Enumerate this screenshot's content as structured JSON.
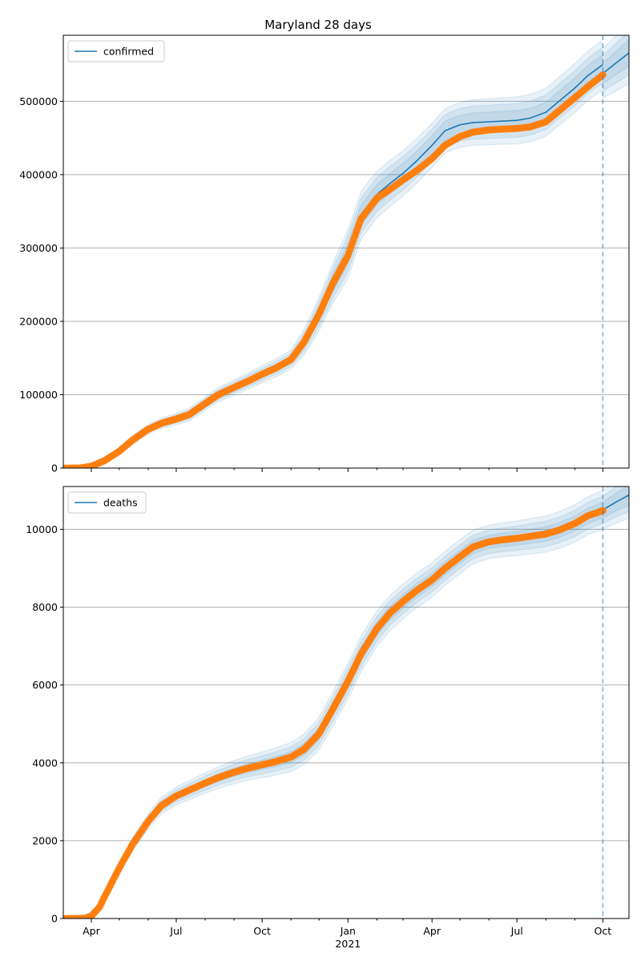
{
  "title": "Maryland 28 days",
  "colors": {
    "model_line": "#1f77b4",
    "observed_points": "#ff7f0e",
    "band": "#1f77b4",
    "grid": "#b0b0b0",
    "cutoff_line": "#1f77b4"
  },
  "x_axis": {
    "ticks": [
      {
        "date": "2020-04-01",
        "label": "Apr",
        "sub": ""
      },
      {
        "date": "2020-07-01",
        "label": "Jul",
        "sub": ""
      },
      {
        "date": "2020-10-01",
        "label": "Oct",
        "sub": ""
      },
      {
        "date": "2021-01-01",
        "label": "Jan",
        "sub": "2021"
      },
      {
        "date": "2021-04-01",
        "label": "Apr",
        "sub": ""
      },
      {
        "date": "2021-07-01",
        "label": "Jul",
        "sub": ""
      },
      {
        "date": "2021-10-01",
        "label": "Oct",
        "sub": ""
      }
    ]
  },
  "chart_data": [
    {
      "type": "line",
      "legend": "confirmed",
      "legend_position": "upper-left",
      "grid": "y",
      "xlim": [
        "2020-03-02",
        "2021-10-29"
      ],
      "ylim": [
        0,
        590000
      ],
      "yticks": [
        0,
        100000,
        200000,
        300000,
        400000,
        500000
      ],
      "cutoff_date": "2021-10-01",
      "observed": {
        "name": "observed",
        "points": [
          [
            "2020-03-02",
            0
          ],
          [
            "2020-03-20",
            150
          ],
          [
            "2020-04-01",
            2500
          ],
          [
            "2020-04-15",
            10000
          ],
          [
            "2020-05-01",
            23000
          ],
          [
            "2020-05-15",
            38000
          ],
          [
            "2020-06-01",
            53000
          ],
          [
            "2020-06-15",
            61000
          ],
          [
            "2020-07-01",
            67000
          ],
          [
            "2020-07-15",
            73000
          ],
          [
            "2020-08-01",
            88000
          ],
          [
            "2020-08-15",
            100000
          ],
          [
            "2020-09-01",
            110000
          ],
          [
            "2020-09-15",
            118000
          ],
          [
            "2020-10-01",
            128000
          ],
          [
            "2020-10-15",
            136000
          ],
          [
            "2020-11-01",
            148000
          ],
          [
            "2020-11-15",
            172000
          ],
          [
            "2020-12-01",
            210000
          ],
          [
            "2020-12-15",
            250000
          ],
          [
            "2021-01-01",
            290000
          ],
          [
            "2021-01-15",
            340000
          ],
          [
            "2021-02-01",
            368000
          ],
          [
            "2021-02-15",
            380000
          ],
          [
            "2021-03-01",
            393000
          ],
          [
            "2021-03-15",
            405000
          ],
          [
            "2021-04-01",
            422000
          ],
          [
            "2021-04-15",
            440000
          ],
          [
            "2021-05-01",
            452000
          ],
          [
            "2021-05-15",
            458000
          ],
          [
            "2021-06-01",
            461000
          ],
          [
            "2021-06-15",
            462000
          ],
          [
            "2021-07-01",
            463000
          ],
          [
            "2021-07-15",
            465000
          ],
          [
            "2021-08-01",
            472000
          ],
          [
            "2021-08-15",
            487000
          ],
          [
            "2021-09-01",
            505000
          ],
          [
            "2021-09-15",
            520000
          ],
          [
            "2021-10-01",
            536000
          ]
        ]
      },
      "model": {
        "name": "confirmed",
        "points": [
          [
            "2020-03-02",
            0
          ],
          [
            "2020-03-20",
            150
          ],
          [
            "2020-04-01",
            2500
          ],
          [
            "2020-04-15",
            10000
          ],
          [
            "2020-05-01",
            23000
          ],
          [
            "2020-05-15",
            38000
          ],
          [
            "2020-06-01",
            53000
          ],
          [
            "2020-06-15",
            61000
          ],
          [
            "2020-07-01",
            67000
          ],
          [
            "2020-07-15",
            73000
          ],
          [
            "2020-08-01",
            88000
          ],
          [
            "2020-08-15",
            100000
          ],
          [
            "2020-09-01",
            110000
          ],
          [
            "2020-09-15",
            118000
          ],
          [
            "2020-10-01",
            128000
          ],
          [
            "2020-10-15",
            136000
          ],
          [
            "2020-11-01",
            148000
          ],
          [
            "2020-11-15",
            172000
          ],
          [
            "2020-12-01",
            210000
          ],
          [
            "2020-12-15",
            250000
          ],
          [
            "2021-01-01",
            292000
          ],
          [
            "2021-01-15",
            345000
          ],
          [
            "2021-02-01",
            373000
          ],
          [
            "2021-02-15",
            388000
          ],
          [
            "2021-03-01",
            402000
          ],
          [
            "2021-03-15",
            418000
          ],
          [
            "2021-04-01",
            440000
          ],
          [
            "2021-04-15",
            460000
          ],
          [
            "2021-05-01",
            468000
          ],
          [
            "2021-05-15",
            471000
          ],
          [
            "2021-06-01",
            472000
          ],
          [
            "2021-06-15",
            473000
          ],
          [
            "2021-07-01",
            474000
          ],
          [
            "2021-07-15",
            477000
          ],
          [
            "2021-08-01",
            485000
          ],
          [
            "2021-08-15",
            500000
          ],
          [
            "2021-09-01",
            518000
          ],
          [
            "2021-09-15",
            535000
          ],
          [
            "2021-10-01",
            550000
          ]
        ]
      },
      "forecast": {
        "points": [
          [
            "2021-10-01",
            538000
          ],
          [
            "2021-10-15",
            552000
          ],
          [
            "2021-10-29",
            566000
          ]
        ]
      },
      "band_widths": [
        [
          [
            "2020-03-02",
            1000
          ],
          [
            "2020-11-01",
            5000
          ],
          [
            "2021-01-01",
            14000
          ],
          [
            "2021-04-01",
            13000
          ],
          [
            "2021-10-01",
            14000
          ],
          [
            "2021-10-29",
            18000
          ]
        ],
        [
          [
            "2020-03-02",
            2000
          ],
          [
            "2020-11-01",
            9000
          ],
          [
            "2021-01-01",
            24000
          ],
          [
            "2021-04-01",
            22000
          ],
          [
            "2021-10-01",
            24000
          ],
          [
            "2021-10-29",
            30000
          ]
        ],
        [
          [
            "2020-03-02",
            3000
          ],
          [
            "2020-11-01",
            13000
          ],
          [
            "2021-01-01",
            33000
          ],
          [
            "2021-04-01",
            30000
          ],
          [
            "2021-10-01",
            34000
          ],
          [
            "2021-10-29",
            42000
          ]
        ]
      ]
    },
    {
      "type": "line",
      "legend": "deaths",
      "legend_position": "upper-left",
      "grid": "y",
      "xlim": [
        "2020-03-02",
        "2021-10-29"
      ],
      "ylim": [
        0,
        11100
      ],
      "yticks": [
        0,
        2000,
        4000,
        6000,
        8000,
        10000
      ],
      "cutoff_date": "2021-10-01",
      "observed": {
        "name": "observed",
        "points": [
          [
            "2020-03-02",
            0
          ],
          [
            "2020-03-25",
            5
          ],
          [
            "2020-04-01",
            60
          ],
          [
            "2020-04-10",
            300
          ],
          [
            "2020-04-15",
            550
          ],
          [
            "2020-05-01",
            1300
          ],
          [
            "2020-05-15",
            1900
          ],
          [
            "2020-06-01",
            2500
          ],
          [
            "2020-06-15",
            2900
          ],
          [
            "2020-07-01",
            3150
          ],
          [
            "2020-07-15",
            3300
          ],
          [
            "2020-08-01",
            3480
          ],
          [
            "2020-08-15",
            3620
          ],
          [
            "2020-09-01",
            3760
          ],
          [
            "2020-09-15",
            3860
          ],
          [
            "2020-10-01",
            3950
          ],
          [
            "2020-10-15",
            4030
          ],
          [
            "2020-11-01",
            4150
          ],
          [
            "2020-11-15",
            4350
          ],
          [
            "2020-12-01",
            4750
          ],
          [
            "2020-12-15",
            5350
          ],
          [
            "2021-01-01",
            6100
          ],
          [
            "2021-01-15",
            6800
          ],
          [
            "2021-02-01",
            7450
          ],
          [
            "2021-02-15",
            7850
          ],
          [
            "2021-03-01",
            8150
          ],
          [
            "2021-03-15",
            8420
          ],
          [
            "2021-04-01",
            8700
          ],
          [
            "2021-04-15",
            9000
          ],
          [
            "2021-05-01",
            9300
          ],
          [
            "2021-05-15",
            9550
          ],
          [
            "2021-06-01",
            9680
          ],
          [
            "2021-06-15",
            9730
          ],
          [
            "2021-07-01",
            9770
          ],
          [
            "2021-07-15",
            9820
          ],
          [
            "2021-08-01",
            9880
          ],
          [
            "2021-08-15",
            9980
          ],
          [
            "2021-09-01",
            10150
          ],
          [
            "2021-09-15",
            10350
          ],
          [
            "2021-10-01",
            10480
          ]
        ]
      },
      "model": {
        "name": "deaths",
        "points": [
          [
            "2020-03-02",
            0
          ],
          [
            "2020-03-25",
            5
          ],
          [
            "2020-04-01",
            60
          ],
          [
            "2020-04-10",
            300
          ],
          [
            "2020-04-15",
            550
          ],
          [
            "2020-05-01",
            1300
          ],
          [
            "2020-05-15",
            1900
          ],
          [
            "2020-06-01",
            2500
          ],
          [
            "2020-06-15",
            2900
          ],
          [
            "2020-07-01",
            3150
          ],
          [
            "2020-07-15",
            3300
          ],
          [
            "2020-08-01",
            3480
          ],
          [
            "2020-08-15",
            3620
          ],
          [
            "2020-09-01",
            3760
          ],
          [
            "2020-09-15",
            3860
          ],
          [
            "2020-10-01",
            3950
          ],
          [
            "2020-10-15",
            4030
          ],
          [
            "2020-11-01",
            4150
          ],
          [
            "2020-11-15",
            4350
          ],
          [
            "2020-12-01",
            4750
          ],
          [
            "2020-12-15",
            5350
          ],
          [
            "2021-01-01",
            6100
          ],
          [
            "2021-01-15",
            6800
          ],
          [
            "2021-02-01",
            7450
          ],
          [
            "2021-02-15",
            7850
          ],
          [
            "2021-03-01",
            8150
          ],
          [
            "2021-03-15",
            8420
          ],
          [
            "2021-04-01",
            8700
          ],
          [
            "2021-04-15",
            9000
          ],
          [
            "2021-05-01",
            9300
          ],
          [
            "2021-05-15",
            9550
          ],
          [
            "2021-06-01",
            9680
          ],
          [
            "2021-06-15",
            9730
          ],
          [
            "2021-07-01",
            9770
          ],
          [
            "2021-07-15",
            9820
          ],
          [
            "2021-08-01",
            9880
          ],
          [
            "2021-08-15",
            9980
          ],
          [
            "2021-09-01",
            10150
          ],
          [
            "2021-09-15",
            10350
          ],
          [
            "2021-10-01",
            10500
          ]
        ]
      },
      "forecast": {
        "points": [
          [
            "2021-10-01",
            10500
          ],
          [
            "2021-10-15",
            10700
          ],
          [
            "2021-10-29",
            10880
          ]
        ]
      },
      "band_widths": [
        [
          [
            "2020-03-02",
            20
          ],
          [
            "2020-06-01",
            60
          ],
          [
            "2020-10-01",
            120
          ],
          [
            "2021-01-01",
            180
          ],
          [
            "2021-06-01",
            170
          ],
          [
            "2021-10-01",
            200
          ],
          [
            "2021-10-29",
            260
          ]
        ],
        [
          [
            "2020-03-02",
            40
          ],
          [
            "2020-06-01",
            130
          ],
          [
            "2020-10-01",
            230
          ],
          [
            "2021-01-01",
            320
          ],
          [
            "2021-06-01",
            300
          ],
          [
            "2021-10-01",
            350
          ],
          [
            "2021-10-29",
            420
          ]
        ],
        [
          [
            "2020-03-02",
            60
          ],
          [
            "2020-06-01",
            200
          ],
          [
            "2020-10-01",
            330
          ],
          [
            "2021-01-01",
            460
          ],
          [
            "2021-06-01",
            430
          ],
          [
            "2021-10-01",
            500
          ],
          [
            "2021-10-29",
            600
          ]
        ]
      ]
    }
  ]
}
